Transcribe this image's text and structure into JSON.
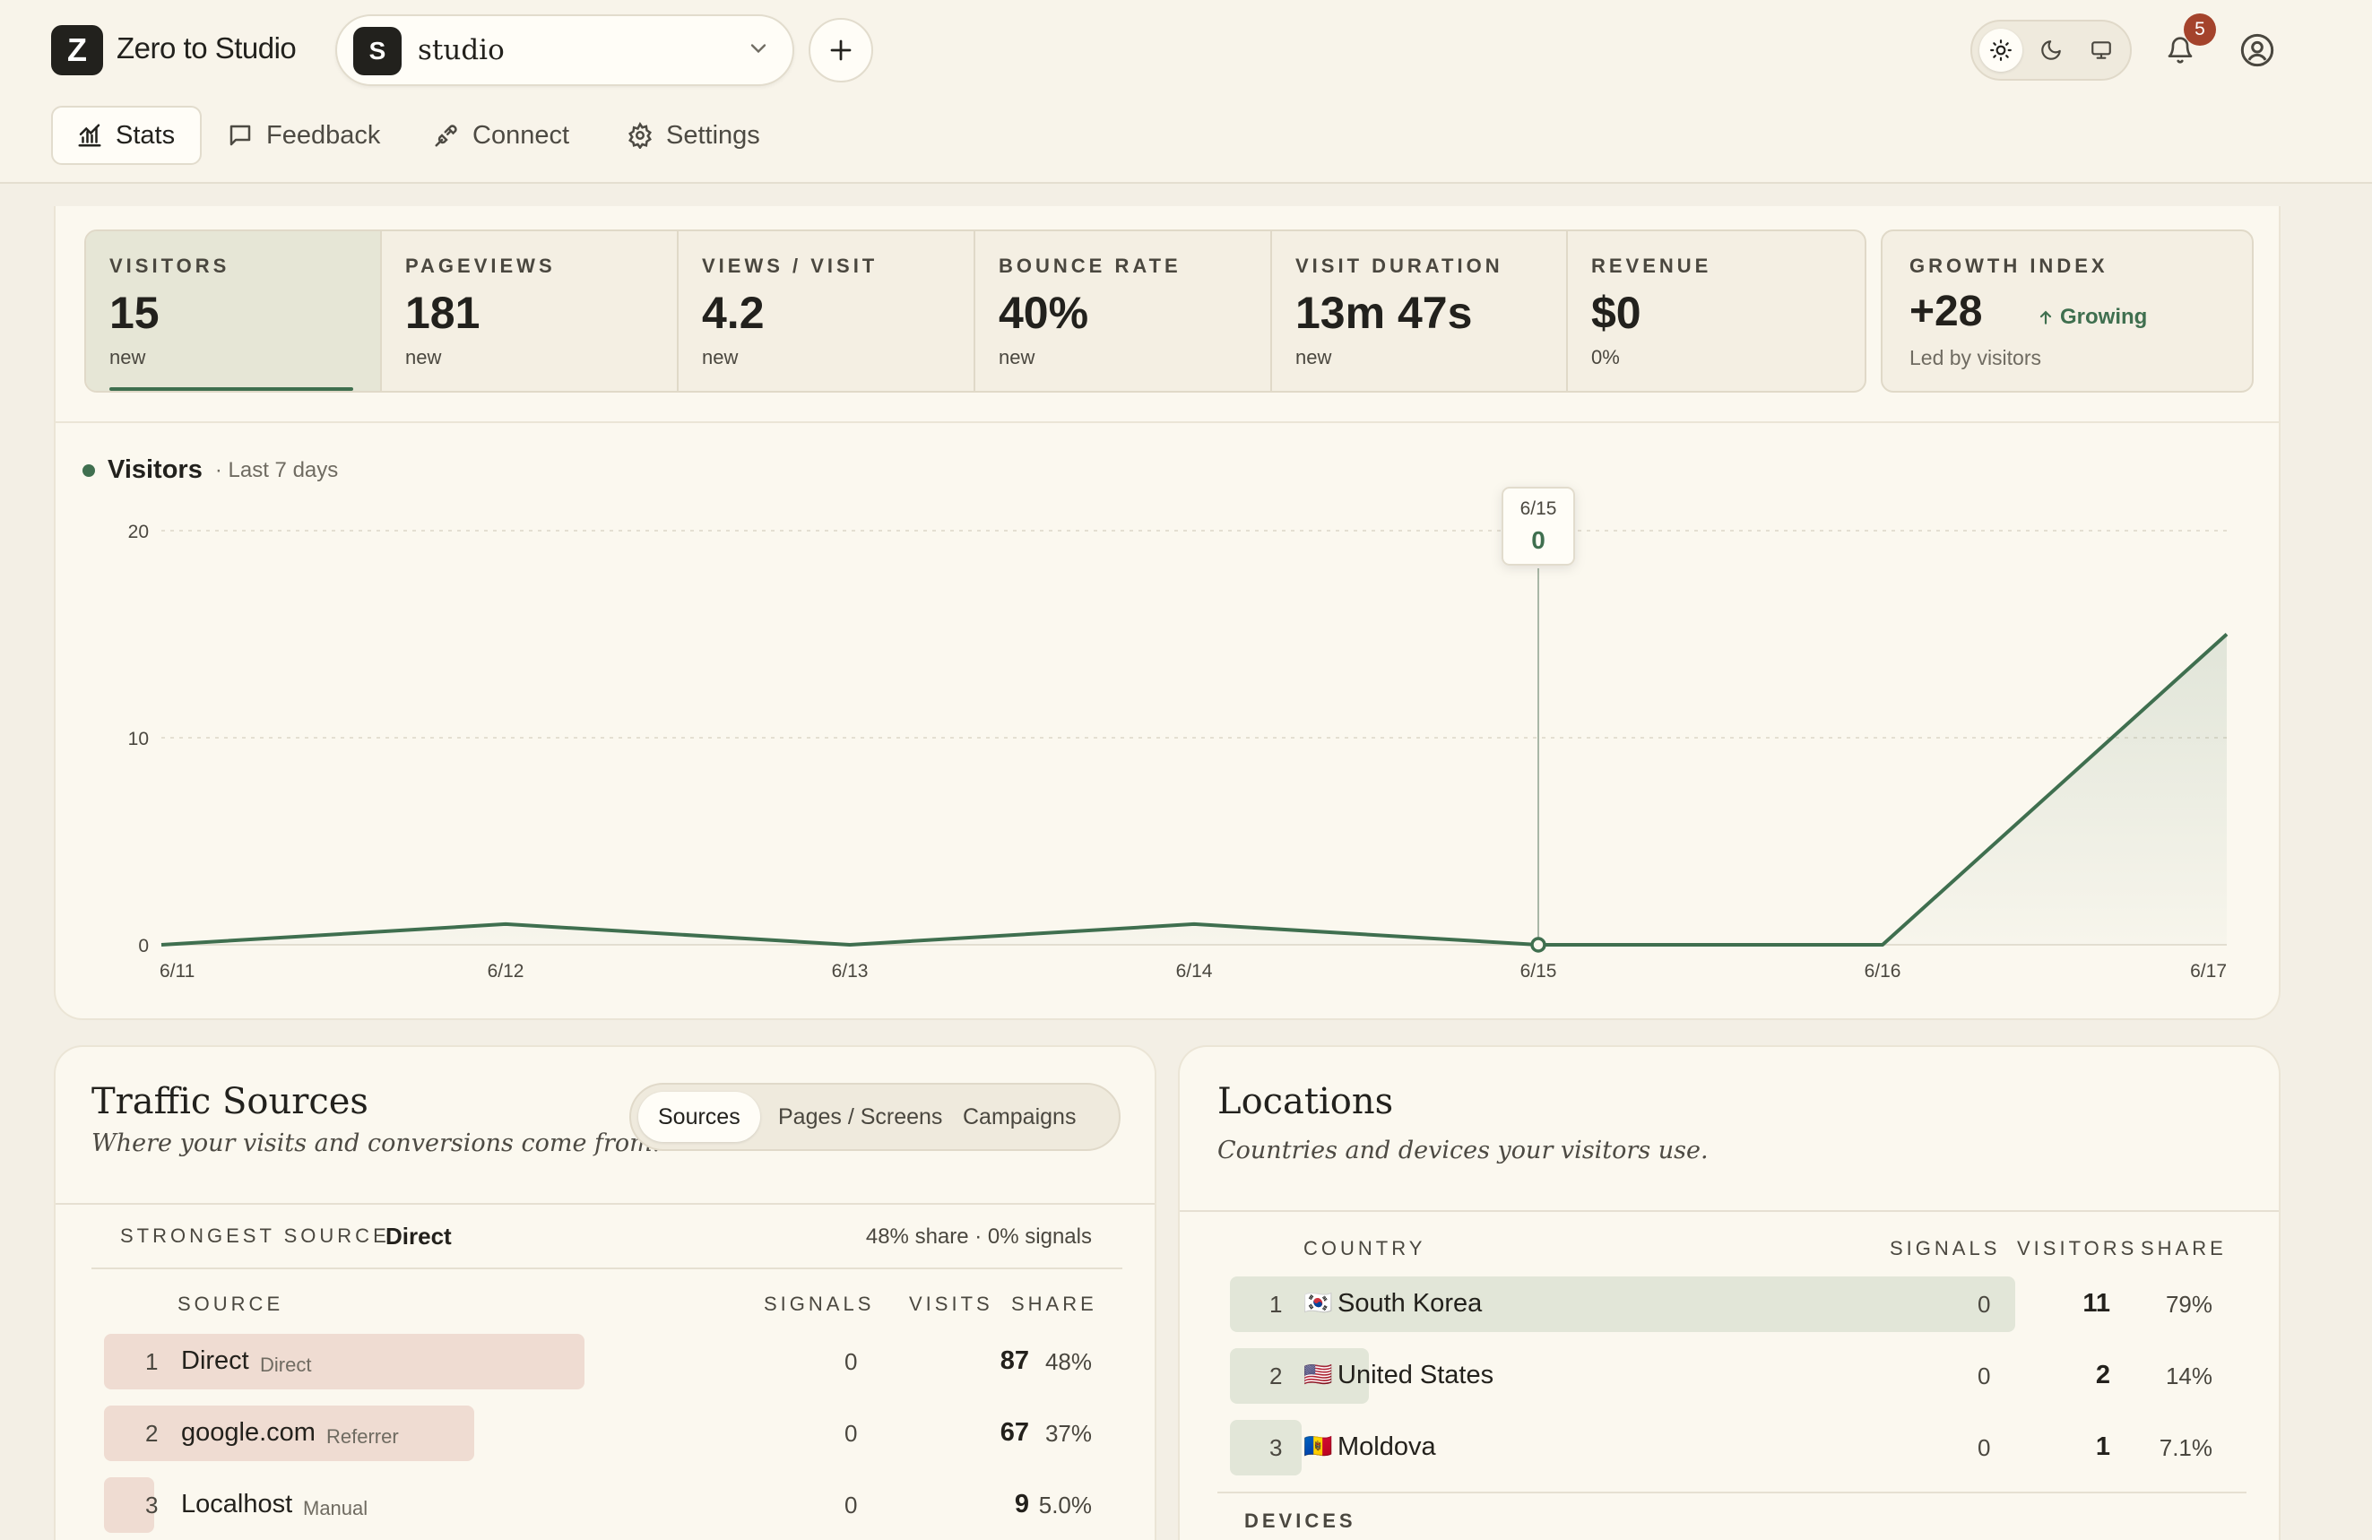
{
  "header": {
    "logo_letter": "Z",
    "app_title": "Zero to Studio",
    "project": {
      "avatar_letter": "S",
      "name": "studio"
    },
    "notification_count": "5",
    "tabs": [
      {
        "label": "Stats",
        "icon": "bar-chart-icon",
        "active": true
      },
      {
        "label": "Feedback",
        "icon": "message-square-icon",
        "active": false
      },
      {
        "label": "Connect",
        "icon": "plug-icon",
        "active": false
      },
      {
        "label": "Settings",
        "icon": "gear-icon",
        "active": false
      }
    ]
  },
  "stats": [
    {
      "label": "VISITORS",
      "value": "15",
      "sub": "new",
      "active": true
    },
    {
      "label": "PAGEVIEWS",
      "value": "181",
      "sub": "new",
      "active": false
    },
    {
      "label": "VIEWS / VISIT",
      "value": "4.2",
      "sub": "new",
      "active": false
    },
    {
      "label": "BOUNCE RATE",
      "value": "40%",
      "sub": "new",
      "active": false
    },
    {
      "label": "VISIT DURATION",
      "value": "13m 47s",
      "sub": "new",
      "active": false
    },
    {
      "label": "REVENUE",
      "value": "$0",
      "sub": "0%",
      "active": false
    }
  ],
  "growth": {
    "label": "GROWTH INDEX",
    "value": "+28",
    "trend": "Growing",
    "sub": "Led by visitors"
  },
  "chart": {
    "series_name": "Visitors",
    "range_label": "· Last 7 days",
    "tooltip": {
      "date": "6/15",
      "value": "0"
    }
  },
  "chart_data": {
    "type": "area",
    "x": [
      "6/11",
      "6/12",
      "6/13",
      "6/14",
      "6/15",
      "6/16",
      "6/17"
    ],
    "series": [
      {
        "name": "Visitors",
        "values": [
          0,
          1,
          0,
          1,
          0,
          0,
          15
        ]
      }
    ],
    "y_ticks": [
      "0",
      "10",
      "20"
    ],
    "ylim": [
      0,
      20
    ],
    "color": "#3f6f4f",
    "grid": true,
    "highlight_index": 4
  },
  "traffic": {
    "title": "Traffic Sources",
    "subtitle": "Where your visits and conversions come from.",
    "segments": [
      {
        "label": "Sources",
        "active": true
      },
      {
        "label": "Pages / Screens",
        "active": false
      },
      {
        "label": "Campaigns",
        "active": false
      }
    ],
    "strongest_label": "STRONGEST SOURCE",
    "strongest_value": "Direct",
    "strongest_meta": "48% share · 0% signals",
    "columns": [
      "SOURCE",
      "SIGNALS",
      "VISITS",
      "SHARE"
    ],
    "rows": [
      {
        "rank": "1",
        "name": "Direct",
        "type": "Direct",
        "signals": "0",
        "visits": "87",
        "share": "48%",
        "share_value": 48
      },
      {
        "rank": "2",
        "name": "google.com",
        "type": "Referrer",
        "signals": "0",
        "visits": "67",
        "share": "37%",
        "share_value": 37
      },
      {
        "rank": "3",
        "name": "Localhost",
        "type": "Manual",
        "signals": "0",
        "visits": "9",
        "share": "5.0%",
        "share_value": 5
      }
    ]
  },
  "locations": {
    "title": "Locations",
    "subtitle": "Countries and devices your visitors use.",
    "columns": [
      "COUNTRY",
      "SIGNALS",
      "VISITORS",
      "SHARE"
    ],
    "rows": [
      {
        "rank": "1",
        "flag": "🇰🇷",
        "name": "South Korea",
        "signals": "0",
        "visitors": "11",
        "share": "79%",
        "share_value": 79
      },
      {
        "rank": "2",
        "flag": "🇺🇸",
        "name": "United States",
        "signals": "0",
        "visitors": "2",
        "share": "14%",
        "share_value": 14
      },
      {
        "rank": "3",
        "flag": "🇲🇩",
        "name": "Moldova",
        "signals": "0",
        "visitors": "1",
        "share": "7.1%",
        "share_value": 7.1
      }
    ],
    "devices_label": "DEVICES"
  }
}
